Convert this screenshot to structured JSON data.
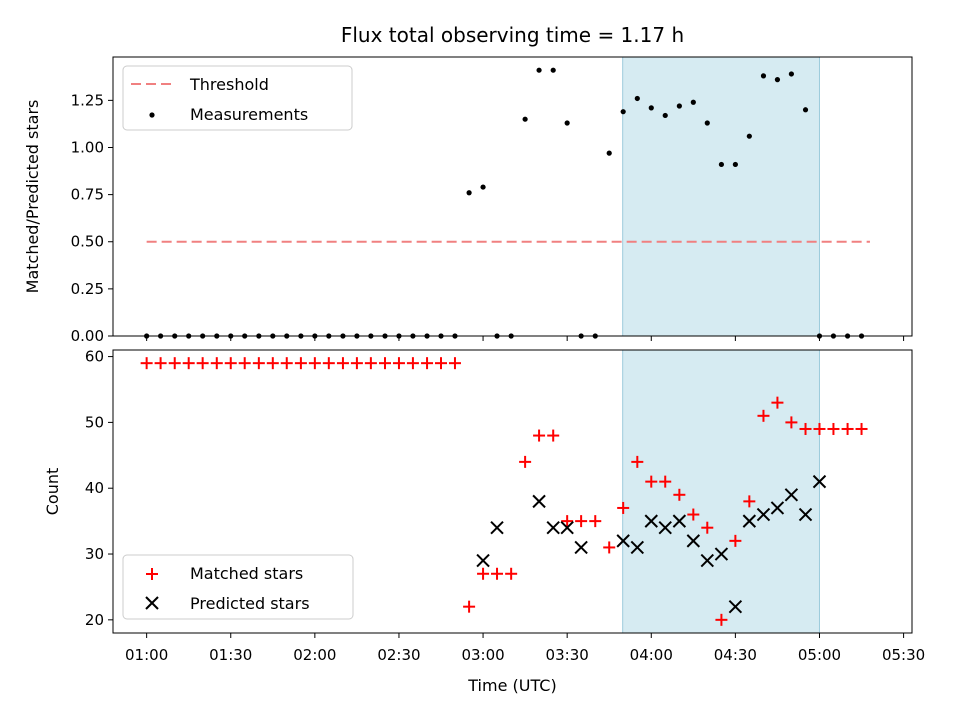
{
  "chart_data": [
    {
      "type": "scatter",
      "title": "Flux total observing time = 1.17 h",
      "xlabel": "",
      "ylabel": "Matched/Predicted stars",
      "xlim": [
        -0.2,
        4.55
      ],
      "ylim": [
        0,
        1.48
      ],
      "xticks": [
        0,
        0.5,
        1,
        1.5,
        2,
        2.5,
        3,
        3.5,
        4,
        4.5
      ],
      "yticks": [
        0,
        0.25,
        0.5,
        0.75,
        1.0,
        1.25
      ],
      "yticklabels": [
        "0.00",
        "0.25",
        "0.50",
        "0.75",
        "1.00",
        "1.25"
      ],
      "highlight_span": [
        2.83,
        4.0
      ],
      "threshold": {
        "name": "Threshold",
        "y": 0.5,
        "x_range": [
          0,
          4.3
        ],
        "color": "#f08080"
      },
      "series": [
        {
          "name": "Measurements",
          "color": "#000000",
          "x": [
            0,
            0.083,
            0.167,
            0.25,
            0.333,
            0.417,
            0.5,
            0.583,
            0.667,
            0.75,
            0.833,
            0.917,
            1.0,
            1.083,
            1.167,
            1.25,
            1.333,
            1.417,
            1.5,
            1.583,
            1.667,
            1.75,
            1.833,
            1.917,
            2.0,
            2.083,
            2.167,
            2.25,
            2.333,
            2.417,
            2.5,
            2.583,
            2.667,
            2.75,
            2.833,
            2.917,
            3.0,
            3.083,
            3.167,
            3.25,
            3.333,
            3.417,
            3.5,
            3.583,
            3.667,
            3.75,
            3.833,
            3.917,
            4.0,
            4.083,
            4.167,
            4.25
          ],
          "y": [
            0,
            0,
            0,
            0,
            0,
            0,
            0,
            0,
            0,
            0,
            0,
            0,
            0,
            0,
            0,
            0,
            0,
            0,
            0,
            0,
            0,
            0,
            0,
            0.76,
            0.79,
            0,
            0,
            1.15,
            1.41,
            1.41,
            1.13,
            0,
            0,
            0.97,
            1.19,
            1.26,
            1.21,
            1.17,
            1.22,
            1.24,
            1.13,
            0.91,
            0.91,
            1.06,
            1.38,
            1.36,
            1.39,
            1.2,
            0,
            0,
            0,
            0
          ]
        }
      ]
    },
    {
      "type": "scatter",
      "title": "",
      "xlabel": "Time (UTC)",
      "ylabel": "Count",
      "xlim": [
        -0.2,
        4.55
      ],
      "ylim": [
        18,
        61
      ],
      "xticks": [
        0,
        0.5,
        1,
        1.5,
        2,
        2.5,
        3,
        3.5,
        4,
        4.5
      ],
      "xticklabels": [
        "01:00",
        "01:30",
        "02:00",
        "02:30",
        "03:00",
        "03:30",
        "04:00",
        "04:30",
        "05:00",
        "05:30"
      ],
      "yticks": [
        20,
        30,
        40,
        50,
        60
      ],
      "yticklabels": [
        "20",
        "30",
        "40",
        "50",
        "60"
      ],
      "highlight_span": [
        2.83,
        4.0
      ],
      "series": [
        {
          "name": "Matched stars",
          "color": "#ff0000",
          "x": [
            0,
            0.083,
            0.167,
            0.25,
            0.333,
            0.417,
            0.5,
            0.583,
            0.667,
            0.75,
            0.833,
            0.917,
            1.0,
            1.083,
            1.167,
            1.25,
            1.333,
            1.417,
            1.5,
            1.583,
            1.667,
            1.75,
            1.833,
            1.917,
            2.0,
            2.083,
            2.167,
            2.25,
            2.333,
            2.417,
            2.5,
            2.583,
            2.667,
            2.75,
            2.833,
            2.917,
            3.0,
            3.083,
            3.167,
            3.25,
            3.333,
            3.417,
            3.5,
            3.583,
            3.667,
            3.75,
            3.833,
            3.917,
            4.0,
            4.083,
            4.167,
            4.25
          ],
          "y": [
            59,
            59,
            59,
            59,
            59,
            59,
            59,
            59,
            59,
            59,
            59,
            59,
            59,
            59,
            59,
            59,
            59,
            59,
            59,
            59,
            59,
            59,
            59,
            22,
            27,
            27,
            27,
            44,
            48,
            48,
            35,
            35,
            35,
            31,
            37,
            44,
            41,
            41,
            39,
            36,
            34,
            20,
            32,
            38,
            51,
            53,
            50,
            49,
            49,
            49,
            49,
            49
          ]
        },
        {
          "name": "Predicted stars",
          "color": "#000000",
          "x": [
            2.0,
            2.083,
            2.333,
            2.417,
            2.5,
            2.583,
            2.833,
            2.917,
            3.0,
            3.083,
            3.167,
            3.25,
            3.333,
            3.417,
            3.5,
            3.583,
            3.667,
            3.75,
            3.833,
            3.917,
            4.0
          ],
          "y": [
            29,
            34,
            38,
            34,
            34,
            31,
            32,
            31,
            35,
            34,
            35,
            32,
            29,
            30,
            22,
            35,
            36,
            37,
            39,
            36,
            41
          ]
        }
      ]
    }
  ]
}
